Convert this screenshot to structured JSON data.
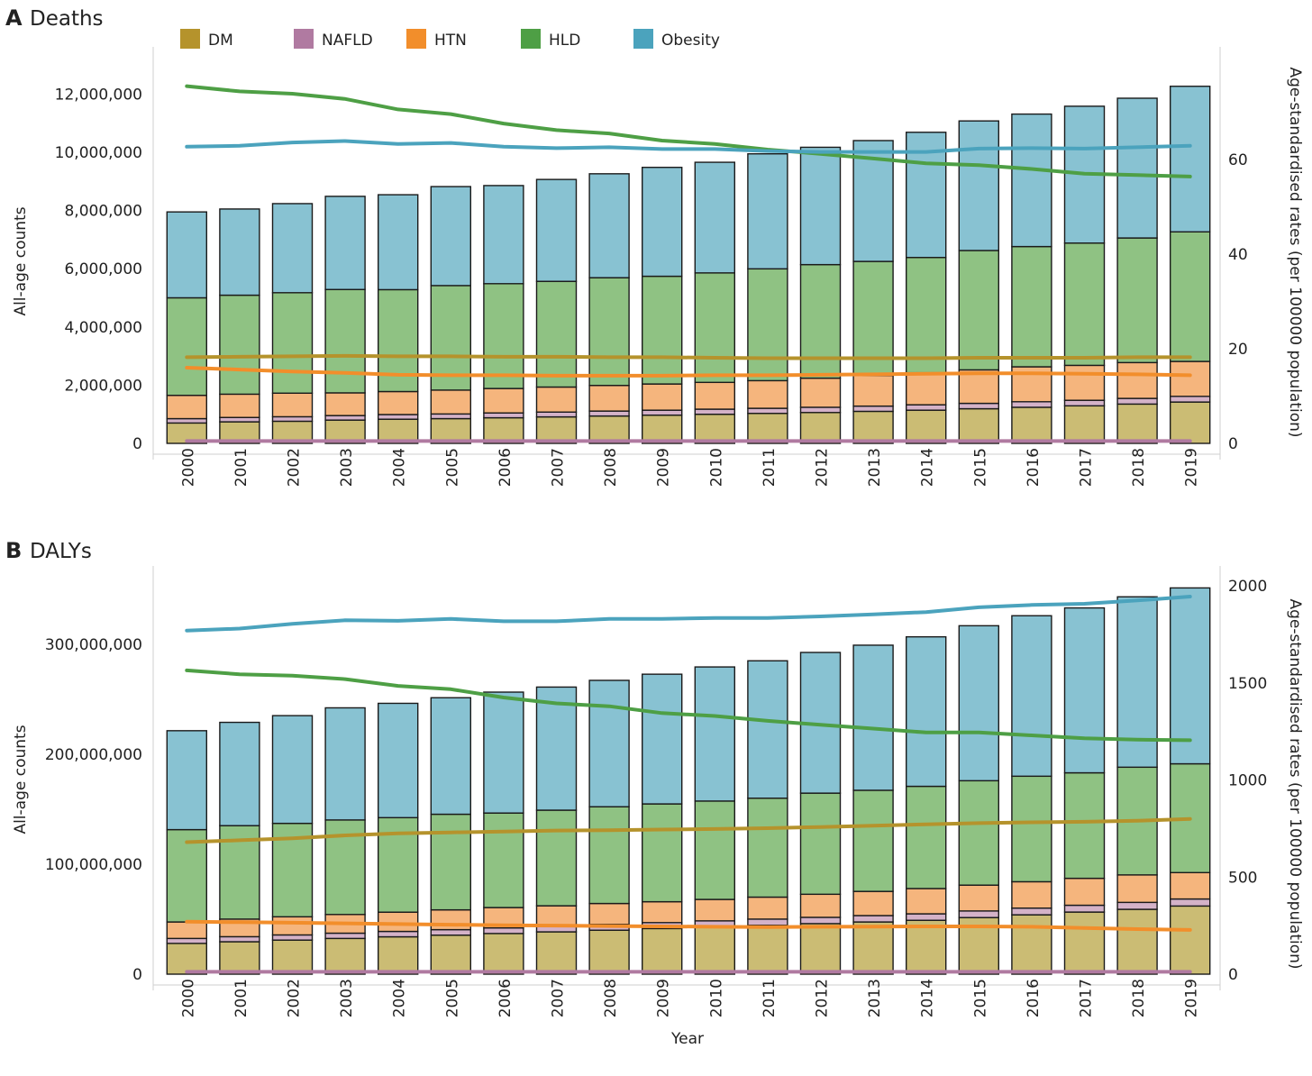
{
  "chart_data": [
    {
      "type": "bar",
      "panel_label": "A",
      "title": "Deaths",
      "xlabel": "",
      "ylabel": "All-age counts",
      "y2label": "Age-standardised rates (per 100000 population)",
      "ylim": [
        0,
        13000000
      ],
      "yticks": [
        0,
        2000000,
        4000000,
        6000000,
        8000000,
        10000000,
        12000000
      ],
      "ytick_labels": [
        "0",
        "2,000,000",
        "4,000,000",
        "6,000,000",
        "8,000,000",
        "10,000,000",
        "12,000,000"
      ],
      "y2lim": [
        0,
        80
      ],
      "y2ticks": [
        0,
        20,
        40,
        60
      ],
      "y2tick_labels": [
        "0",
        "20",
        "40",
        "60"
      ],
      "legend": [
        "DM",
        "NAFLD",
        "HTN",
        "HLD",
        "Obesity"
      ],
      "categories": [
        "2000",
        "2001",
        "2002",
        "2003",
        "2004",
        "2005",
        "2006",
        "2007",
        "2008",
        "2009",
        "2010",
        "2011",
        "2012",
        "2013",
        "2014",
        "2015",
        "2016",
        "2017",
        "2018",
        "2019"
      ],
      "series": [
        {
          "name": "DM",
          "kind": "bar",
          "values": [
            700000,
            740000,
            760000,
            800000,
            830000,
            850000,
            880000,
            910000,
            940000,
            970000,
            1000000,
            1030000,
            1060000,
            1100000,
            1140000,
            1190000,
            1240000,
            1290000,
            1350000,
            1420000
          ]
        },
        {
          "name": "NAFLD",
          "kind": "bar",
          "values": [
            150000,
            150000,
            155000,
            155000,
            160000,
            160000,
            165000,
            165000,
            170000,
            170000,
            175000,
            175000,
            180000,
            180000,
            185000,
            185000,
            190000,
            190000,
            195000,
            195000
          ]
        },
        {
          "name": "HTN",
          "kind": "bar",
          "values": [
            800000,
            800000,
            810000,
            780000,
            790000,
            820000,
            840000,
            860000,
            880000,
            900000,
            920000,
            950000,
            1000000,
            1050000,
            1100000,
            1150000,
            1200000,
            1200000,
            1230000,
            1200000
          ]
        },
        {
          "name": "HLD",
          "kind": "bar",
          "values": [
            3350000,
            3400000,
            3450000,
            3550000,
            3500000,
            3590000,
            3600000,
            3630000,
            3700000,
            3700000,
            3760000,
            3840000,
            3900000,
            3920000,
            3960000,
            4100000,
            4130000,
            4200000,
            4280000,
            4450000
          ]
        },
        {
          "name": "Obesity",
          "kind": "bar",
          "values": [
            2950000,
            2960000,
            3060000,
            3200000,
            3260000,
            3400000,
            3370000,
            3500000,
            3570000,
            3740000,
            3800000,
            3950000,
            4030000,
            4150000,
            4300000,
            4450000,
            4550000,
            4700000,
            4800000,
            5000000
          ]
        },
        {
          "name": "DM",
          "kind": "line",
          "values": [
            18.2,
            18.3,
            18.4,
            18.5,
            18.4,
            18.4,
            18.3,
            18.3,
            18.2,
            18.2,
            18.1,
            18.0,
            18.0,
            18.0,
            18.0,
            18.1,
            18.1,
            18.1,
            18.2,
            18.2
          ]
        },
        {
          "name": "NAFLD",
          "kind": "line",
          "values": [
            0.5,
            0.5,
            0.5,
            0.5,
            0.5,
            0.5,
            0.5,
            0.5,
            0.5,
            0.5,
            0.5,
            0.5,
            0.5,
            0.5,
            0.5,
            0.5,
            0.5,
            0.5,
            0.5,
            0.5
          ]
        },
        {
          "name": "HTN",
          "kind": "line",
          "values": [
            16.0,
            15.6,
            15.2,
            14.9,
            14.5,
            14.4,
            14.4,
            14.3,
            14.3,
            14.3,
            14.4,
            14.4,
            14.5,
            14.6,
            14.7,
            14.8,
            14.8,
            14.7,
            14.6,
            14.4
          ]
        },
        {
          "name": "HLD",
          "kind": "line",
          "values": [
            75.5,
            74.4,
            73.9,
            72.8,
            70.6,
            69.6,
            67.6,
            66.2,
            65.5,
            64.0,
            63.3,
            62.1,
            61.2,
            60.2,
            59.2,
            58.8,
            58.0,
            57.0,
            56.7,
            56.4
          ]
        },
        {
          "name": "Obesity",
          "kind": "line",
          "values": [
            62.7,
            62.9,
            63.6,
            63.9,
            63.3,
            63.5,
            62.7,
            62.4,
            62.6,
            62.2,
            62.2,
            61.8,
            61.6,
            61.6,
            61.6,
            62.3,
            62.4,
            62.3,
            62.6,
            62.9
          ]
        }
      ]
    },
    {
      "type": "bar",
      "panel_label": "B",
      "title": "DALYs",
      "xlabel": "Year",
      "ylabel": "All-age counts",
      "y2label": "Age-standardised rates (per 100000 population)",
      "ylim": [
        0,
        355000000
      ],
      "yticks": [
        0,
        100000000,
        200000000,
        300000000
      ],
      "ytick_labels": [
        "0",
        "100,000,000",
        "200,000,000",
        "300,000,000"
      ],
      "y2lim": [
        0,
        2010
      ],
      "y2ticks": [
        0,
        500,
        1000,
        1500,
        2000
      ],
      "y2tick_labels": [
        "0",
        "500",
        "1000",
        "1500",
        "2000"
      ],
      "legend": [],
      "categories": [
        "2000",
        "2001",
        "2002",
        "2003",
        "2004",
        "2005",
        "2006",
        "2007",
        "2008",
        "2009",
        "2010",
        "2011",
        "2012",
        "2013",
        "2014",
        "2015",
        "2016",
        "2017",
        "2018",
        "2019"
      ],
      "series": [
        {
          "name": "DM",
          "kind": "bar",
          "values": [
            28000000,
            29500000,
            31000000,
            32500000,
            34000000,
            35500000,
            37000000,
            38500000,
            40000000,
            41500000,
            43000000,
            44500000,
            46000000,
            47500000,
            49000000,
            51500000,
            54000000,
            56500000,
            59000000,
            62000000
          ]
        },
        {
          "name": "NAFLD",
          "kind": "bar",
          "values": [
            4500000,
            4600000,
            4700000,
            4800000,
            4900000,
            5000000,
            5100000,
            5200000,
            5300000,
            5400000,
            5500000,
            5600000,
            5700000,
            5800000,
            5900000,
            6000000,
            6100000,
            6200000,
            6300000,
            6400000
          ]
        },
        {
          "name": "HTN",
          "kind": "bar",
          "values": [
            15000000,
            16000000,
            16500000,
            17000000,
            17500000,
            18000000,
            18500000,
            18500000,
            19000000,
            19000000,
            19500000,
            20000000,
            21000000,
            22000000,
            23000000,
            23500000,
            24000000,
            24500000,
            25000000,
            24000000
          ]
        },
        {
          "name": "HLD",
          "kind": "bar",
          "values": [
            84000000,
            85000000,
            85000000,
            86000000,
            86000000,
            87000000,
            86000000,
            87000000,
            88000000,
            89000000,
            89500000,
            90000000,
            92000000,
            92000000,
            93000000,
            95000000,
            96000000,
            96000000,
            98000000,
            99000000
          ]
        },
        {
          "name": "Obesity",
          "kind": "bar",
          "values": [
            90000000,
            94000000,
            98000000,
            102000000,
            104000000,
            106000000,
            110000000,
            112000000,
            115000000,
            118000000,
            122000000,
            125000000,
            128000000,
            132000000,
            136000000,
            141000000,
            146000000,
            150000000,
            155000000,
            160000000
          ]
        },
        {
          "name": "DM",
          "kind": "line",
          "values": [
            680,
            690,
            700,
            715,
            725,
            730,
            735,
            740,
            742,
            745,
            748,
            752,
            758,
            765,
            772,
            778,
            782,
            785,
            790,
            800
          ]
        },
        {
          "name": "NAFLD",
          "kind": "line",
          "values": [
            12,
            12,
            12,
            12,
            12,
            12,
            12,
            12,
            12,
            12,
            12,
            12,
            12,
            12,
            12,
            12,
            12,
            12,
            12,
            12
          ]
        },
        {
          "name": "HTN",
          "kind": "line",
          "values": [
            270,
            268,
            265,
            262,
            258,
            255,
            252,
            250,
            248,
            246,
            244,
            243,
            244,
            245,
            246,
            246,
            244,
            238,
            232,
            228
          ]
        },
        {
          "name": "HLD",
          "kind": "line",
          "values": [
            1565,
            1545,
            1538,
            1520,
            1485,
            1468,
            1425,
            1395,
            1380,
            1345,
            1330,
            1305,
            1285,
            1265,
            1245,
            1245,
            1230,
            1215,
            1208,
            1205
          ]
        },
        {
          "name": "Obesity",
          "kind": "line",
          "values": [
            1770,
            1780,
            1805,
            1823,
            1820,
            1830,
            1818,
            1818,
            1830,
            1830,
            1835,
            1835,
            1843,
            1853,
            1865,
            1890,
            1902,
            1908,
            1925,
            1945
          ]
        }
      ]
    }
  ],
  "colors": {
    "DM_line": "#b5932c",
    "DM_bar": "#cbbc74",
    "NAFLD_line": "#b07aa1",
    "NAFLD_bar": "#d4b2c8",
    "HTN_line": "#f28e2b",
    "HTN_bar": "#f5b57d",
    "HLD_line": "#4e9f45",
    "HLD_bar": "#8fc283",
    "Obesity_line": "#4ba3bd",
    "Obesity_bar": "#88c2d2"
  }
}
